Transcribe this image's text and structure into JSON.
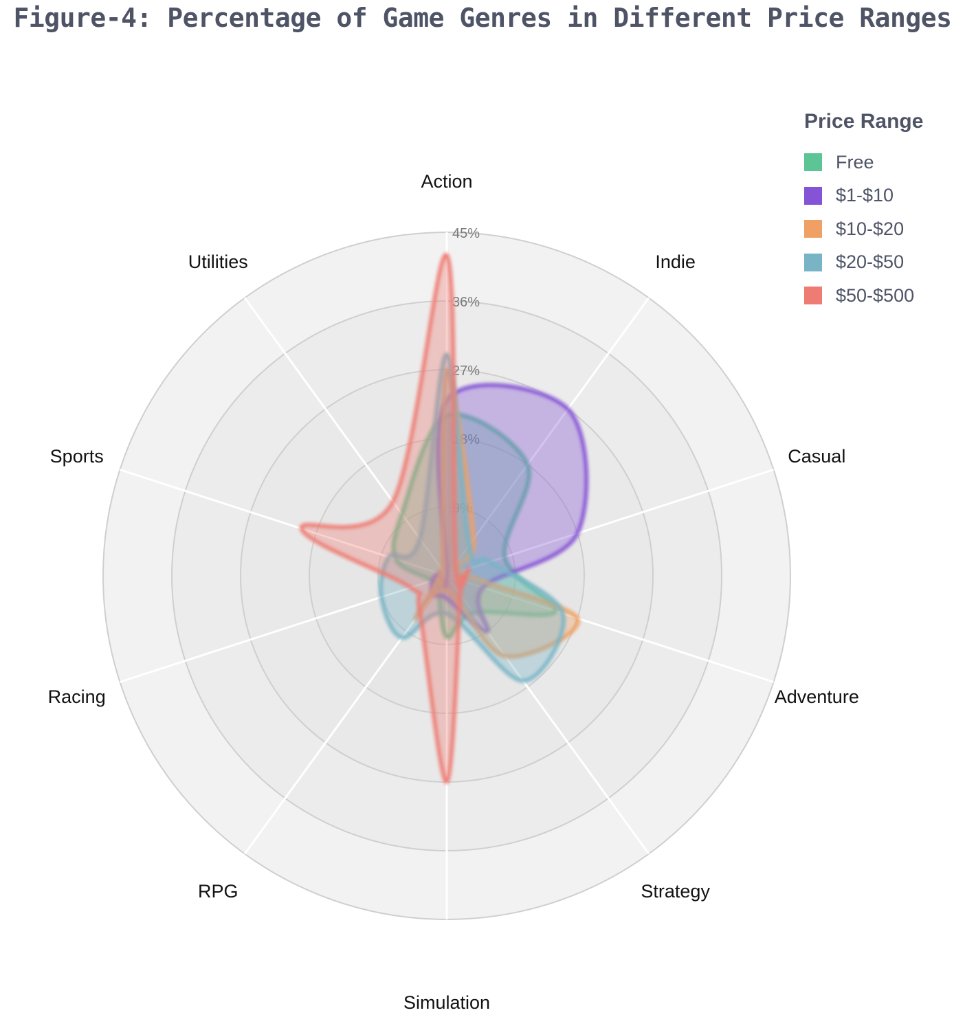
{
  "chart_data": {
    "type": "radar",
    "title": "Figure-4: Percentage of Game Genres in Different Price Ranges",
    "categories": [
      "Action",
      "Indie",
      "Casual",
      "Adventure",
      "Strategy",
      "Simulation",
      "RPG",
      "Racing",
      "Sports",
      "Utilities"
    ],
    "radial_range": [
      0,
      45
    ],
    "radial_ticks": [
      9,
      18,
      27,
      36,
      45
    ],
    "radial_tick_labels": [
      "9%",
      "18%",
      "27%",
      "36%",
      "45%"
    ],
    "legend_title": "Price Range",
    "legend_position": "top-right",
    "series": [
      {
        "name": "Free",
        "color": "#5cc495",
        "values": [
          21,
          18,
          8,
          15,
          6,
          8,
          2,
          2,
          7,
          10
        ]
      },
      {
        "name": "$1-$10",
        "color": "#8553d6",
        "values": [
          23,
          27,
          18,
          5,
          9,
          3,
          3,
          2,
          1,
          0
        ]
      },
      {
        "name": "$10-$20",
        "color": "#f0a064",
        "values": [
          27,
          6,
          2,
          18,
          13,
          2,
          7,
          1,
          1,
          1
        ]
      },
      {
        "name": "$20-$50",
        "color": "#78b4c6",
        "values": [
          29,
          5,
          6,
          16,
          17,
          5,
          10,
          9,
          8,
          6
        ]
      },
      {
        "name": "$50-$500",
        "color": "#ee7c73",
        "values": [
          42,
          2,
          3,
          2,
          3,
          27,
          6,
          5,
          20,
          12
        ]
      }
    ]
  }
}
